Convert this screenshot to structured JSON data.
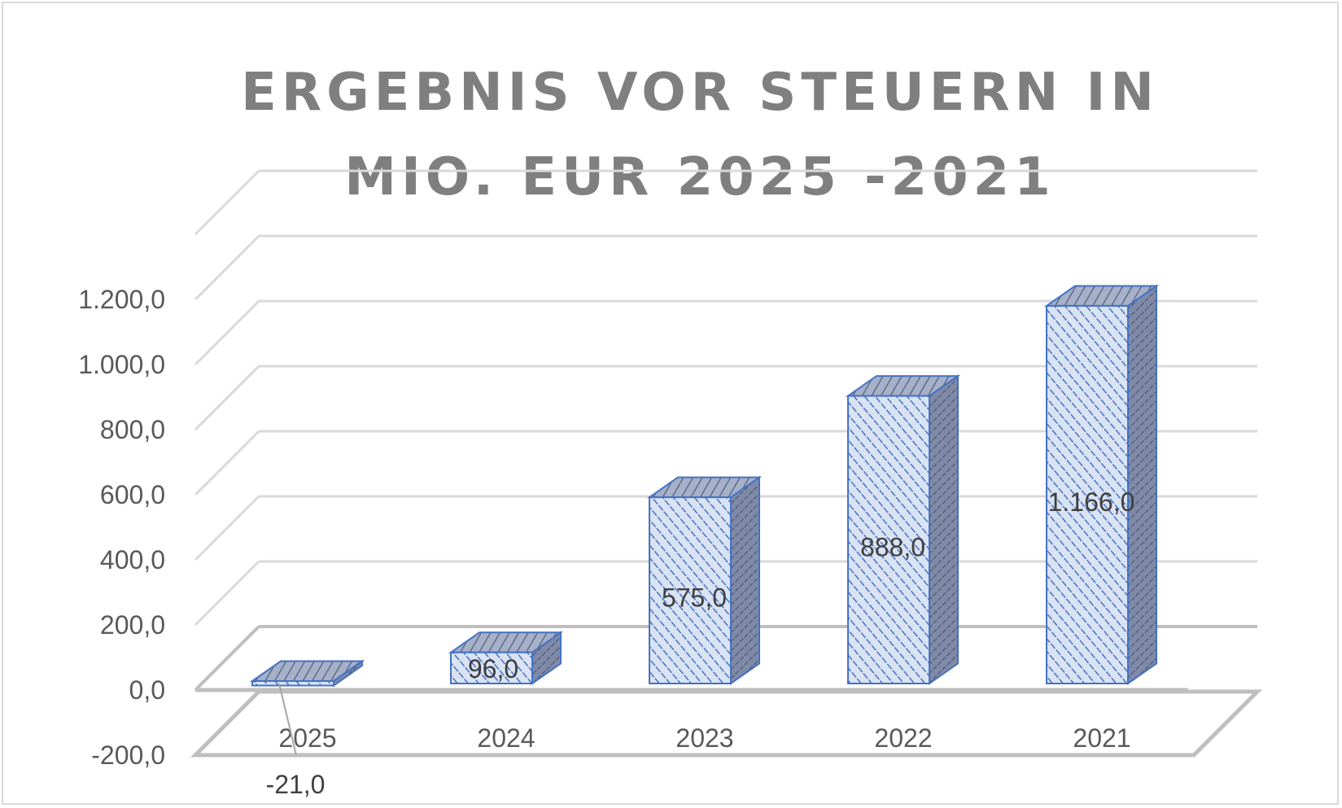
{
  "chart_data": {
    "type": "bar",
    "title": "ERGEBNIS VOR STEUERN IN MIO. EUR 2025 -2021",
    "categories": [
      "2025",
      "2024",
      "2023",
      "2022",
      "2021"
    ],
    "values": [
      -21.0,
      96.0,
      575.0,
      888.0,
      1166.0
    ],
    "data_labels": [
      "-21,0",
      "96,0",
      "575,0",
      "888,0",
      "1.166,0"
    ],
    "y_ticks": [
      "-200,0",
      "0,0",
      "200,0",
      "400,0",
      "600,0",
      "800,0",
      "1.000,0",
      "1.200,0"
    ],
    "ylim": [
      -200,
      1400
    ],
    "grid": true,
    "three_d": true,
    "colors": {
      "bar_front": "#dae3f3",
      "bar_hatch": "#4472c4",
      "bar_edge": "#4472c4",
      "bar_side": "#7f8aa8",
      "bar_top": "#a6b0c8",
      "grid": "#d9d9d9",
      "floor": "#bfbfbf",
      "title": "#7f7f7f",
      "text": "#595959"
    }
  }
}
